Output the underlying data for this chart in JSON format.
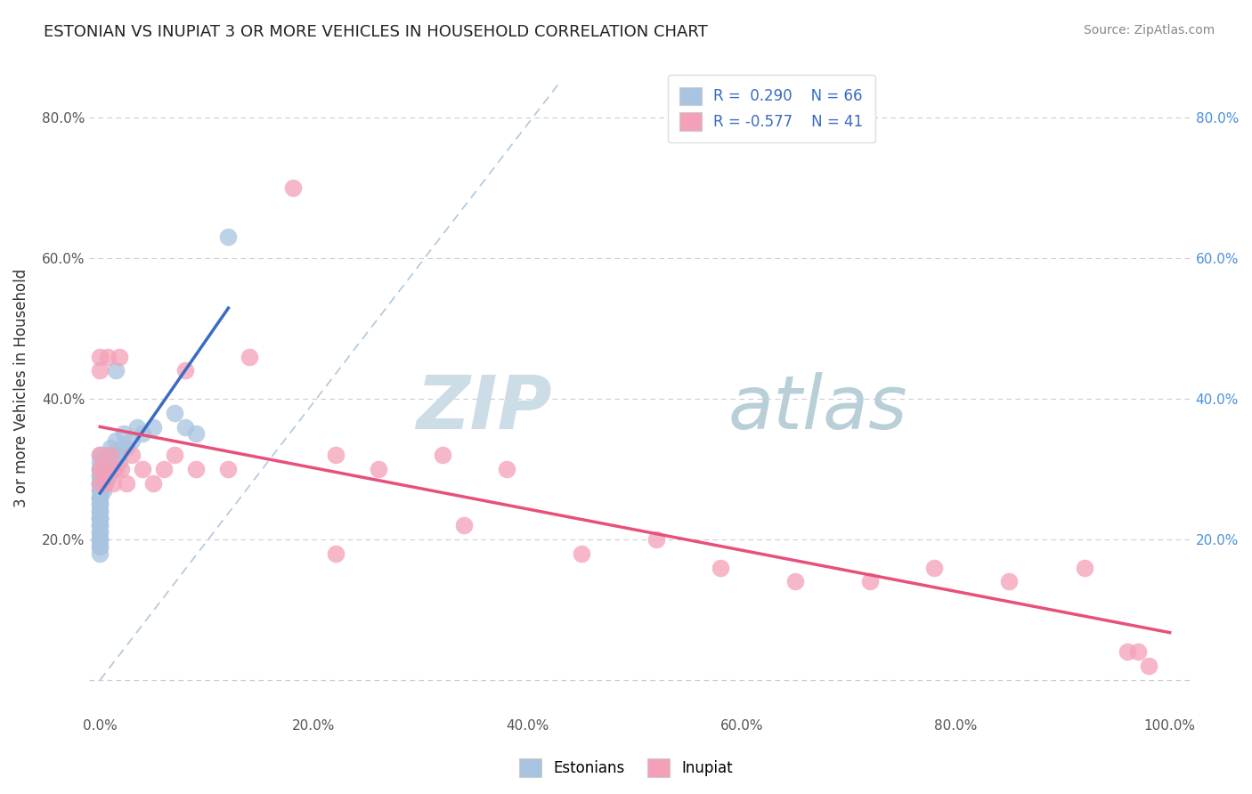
{
  "title": "ESTONIAN VS INUPIAT 3 OR MORE VEHICLES IN HOUSEHOLD CORRELATION CHART",
  "source": "Source: ZipAtlas.com",
  "ylabel": "3 or more Vehicles in Household",
  "xlim": [
    -0.01,
    1.02
  ],
  "ylim": [
    -0.05,
    0.88
  ],
  "xticks": [
    0.0,
    0.2,
    0.4,
    0.6,
    0.8,
    1.0
  ],
  "yticks": [
    0.0,
    0.2,
    0.4,
    0.6,
    0.8
  ],
  "xtick_labels": [
    "0.0%",
    "20.0%",
    "40.0%",
    "60.0%",
    "80.0%",
    "100.0%"
  ],
  "ytick_labels": [
    "",
    "20.0%",
    "40.0%",
    "60.0%",
    "80.0%"
  ],
  "legend_labels": [
    "Estonians",
    "Inupiat"
  ],
  "estonian_color": "#a8c4e0",
  "inupiat_color": "#f4a0b8",
  "estonian_line_color": "#3a6bc4",
  "inupiat_line_color": "#e8507a",
  "watermark_zip_color": "#ccdde8",
  "watermark_atlas_color": "#b8cfd8",
  "est_x": [
    0.0,
    0.0,
    0.0,
    0.0,
    0.0,
    0.0,
    0.0,
    0.0,
    0.0,
    0.0,
    0.0,
    0.0,
    0.0,
    0.0,
    0.0,
    0.0,
    0.0,
    0.0,
    0.0,
    0.0,
    0.0,
    0.0,
    0.0,
    0.0,
    0.0,
    0.0,
    0.0,
    0.0,
    0.0,
    0.0,
    0.001,
    0.001,
    0.002,
    0.002,
    0.003,
    0.003,
    0.003,
    0.004,
    0.004,
    0.005,
    0.005,
    0.006,
    0.006,
    0.007,
    0.007,
    0.008,
    0.009,
    0.01,
    0.01,
    0.012,
    0.013,
    0.015,
    0.017,
    0.018,
    0.02,
    0.022,
    0.025,
    0.03,
    0.035,
    0.04,
    0.05,
    0.07,
    0.08,
    0.09,
    0.12,
    0.015
  ],
  "est_y": [
    0.28,
    0.27,
    0.26,
    0.25,
    0.24,
    0.23,
    0.22,
    0.21,
    0.2,
    0.19,
    0.29,
    0.3,
    0.28,
    0.26,
    0.25,
    0.23,
    0.22,
    0.2,
    0.19,
    0.18,
    0.31,
    0.3,
    0.29,
    0.27,
    0.26,
    0.24,
    0.23,
    0.21,
    0.2,
    0.32,
    0.29,
    0.27,
    0.3,
    0.28,
    0.31,
    0.29,
    0.27,
    0.3,
    0.28,
    0.32,
    0.3,
    0.31,
    0.29,
    0.32,
    0.3,
    0.29,
    0.31,
    0.33,
    0.31,
    0.3,
    0.32,
    0.34,
    0.32,
    0.31,
    0.33,
    0.35,
    0.33,
    0.34,
    0.36,
    0.35,
    0.36,
    0.38,
    0.36,
    0.35,
    0.63,
    0.44
  ],
  "inp_x": [
    0.0,
    0.0,
    0.0,
    0.0,
    0.0,
    0.003,
    0.005,
    0.007,
    0.01,
    0.012,
    0.015,
    0.018,
    0.02,
    0.025,
    0.03,
    0.04,
    0.05,
    0.06,
    0.07,
    0.08,
    0.09,
    0.12,
    0.14,
    0.18,
    0.22,
    0.26,
    0.32,
    0.38,
    0.45,
    0.52,
    0.58,
    0.65,
    0.72,
    0.78,
    0.85,
    0.92,
    0.96,
    0.97,
    0.98,
    0.22,
    0.34
  ],
  "inp_y": [
    0.46,
    0.44,
    0.32,
    0.3,
    0.28,
    0.3,
    0.28,
    0.46,
    0.32,
    0.28,
    0.3,
    0.46,
    0.3,
    0.28,
    0.32,
    0.3,
    0.28,
    0.3,
    0.32,
    0.44,
    0.3,
    0.3,
    0.46,
    0.7,
    0.32,
    0.3,
    0.32,
    0.3,
    0.18,
    0.2,
    0.16,
    0.14,
    0.14,
    0.16,
    0.14,
    0.16,
    0.04,
    0.04,
    0.02,
    0.18,
    0.22
  ]
}
